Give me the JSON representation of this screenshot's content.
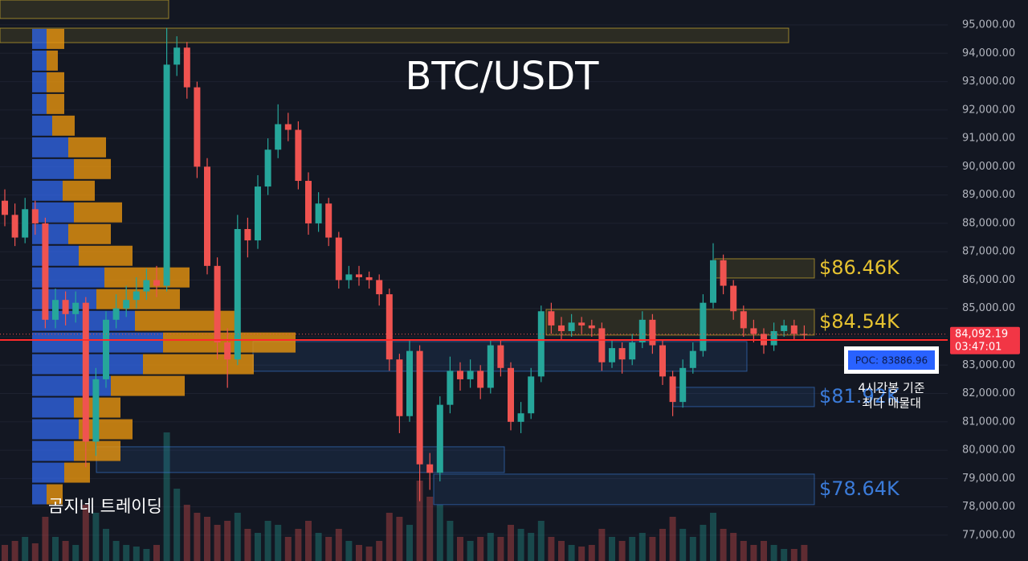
{
  "chart_data": {
    "type": "candlestick",
    "title": "BTC/USDT",
    "watermark": "곰지네 트레이딩",
    "ylim": [
      76090,
      95880
    ],
    "yticks": [
      {
        "value": 77000,
        "label": "77,000.00"
      },
      {
        "value": 78000,
        "label": "78,000.00"
      },
      {
        "value": 79000,
        "label": "79,000.00"
      },
      {
        "value": 80000,
        "label": "80,000.00"
      },
      {
        "value": 81000,
        "label": "81,000.00"
      },
      {
        "value": 82000,
        "label": "82,000.00"
      },
      {
        "value": 83000,
        "label": "83,000.00"
      },
      {
        "value": 84000,
        "label": "84,000.00"
      },
      {
        "value": 85000,
        "label": "85,000.00"
      },
      {
        "value": 86000,
        "label": "86,000.00"
      },
      {
        "value": 87000,
        "label": "87,000.00"
      },
      {
        "value": 88000,
        "label": "88,000.00"
      },
      {
        "value": 89000,
        "label": "89,000.00"
      },
      {
        "value": 90000,
        "label": "90,000.00"
      },
      {
        "value": 91000,
        "label": "91,000.00"
      },
      {
        "value": 92000,
        "label": "92,000.00"
      },
      {
        "value": 93000,
        "label": "93,000.00"
      },
      {
        "value": 94000,
        "label": "94,000.00"
      },
      {
        "value": 95000,
        "label": "95,000.00"
      }
    ],
    "up_color": "#26a69a",
    "down_color": "#ef5350",
    "open": [
      88800,
      88300,
      87500,
      88500,
      88000,
      84600,
      85300,
      84800,
      85200,
      80300,
      82500,
      84600,
      85000,
      85300,
      85600,
      86000,
      85800,
      93600,
      94200,
      92800,
      90000,
      86500,
      83800,
      83200,
      87800,
      87400,
      89300,
      90600,
      91500,
      91300,
      89500,
      88000,
      88700,
      87500,
      86000,
      86200,
      86100,
      86000,
      85500,
      83200,
      81200,
      83500,
      79500,
      79200,
      81600,
      82800,
      82500,
      82800,
      82200,
      83700,
      82900,
      81000,
      81300,
      82600,
      84900,
      84400,
      84200,
      84500,
      84400,
      84300,
      83100,
      83600,
      83200,
      83800,
      84600,
      83700,
      82600,
      81700,
      82900,
      83500,
      85200,
      86700,
      85800,
      84900,
      84300,
      84100,
      83700,
      84200,
      84400,
      84100
    ],
    "high": [
      89200,
      88700,
      88900,
      88800,
      88200,
      85700,
      85600,
      85600,
      85400,
      82900,
      84900,
      85500,
      85800,
      86100,
      86400,
      86500,
      94900,
      94600,
      94400,
      93000,
      90300,
      86800,
      84300,
      88300,
      88200,
      89700,
      91000,
      92200,
      91900,
      91600,
      89800,
      89100,
      88900,
      87700,
      86500,
      86500,
      86300,
      86200,
      85700,
      83400,
      83900,
      83700,
      79900,
      81900,
      83300,
      83100,
      83200,
      83000,
      83900,
      83900,
      83100,
      81700,
      82900,
      85100,
      85200,
      84700,
      84800,
      84700,
      84600,
      84500,
      83900,
      83800,
      84100,
      84900,
      84800,
      83900,
      82800,
      83200,
      83800,
      85500,
      87300,
      86900,
      86000,
      85100,
      84600,
      84300,
      84500,
      84600,
      84600,
      84400
    ],
    "low": [
      87900,
      87200,
      87300,
      87600,
      84300,
      84300,
      84400,
      84500,
      79400,
      79800,
      82200,
      84300,
      84700,
      85000,
      85300,
      85400,
      85600,
      93200,
      92400,
      89600,
      86200,
      83200,
      82200,
      83000,
      86800,
      87100,
      89000,
      90300,
      90900,
      89200,
      87600,
      87700,
      87200,
      85700,
      85700,
      85800,
      85700,
      85100,
      82800,
      80600,
      81000,
      78200,
      78600,
      78900,
      81300,
      82100,
      82200,
      81800,
      82000,
      82600,
      80700,
      80600,
      81100,
      82400,
      84100,
      83900,
      84000,
      84100,
      84000,
      82800,
      82900,
      82700,
      83000,
      83600,
      83400,
      82300,
      81200,
      81500,
      82700,
      83300,
      85000,
      85500,
      84600,
      84000,
      83800,
      83400,
      83500,
      84000,
      83900,
      83900
    ],
    "close": [
      88300,
      87500,
      88500,
      88000,
      84600,
      85300,
      84800,
      85200,
      80300,
      82500,
      84600,
      85000,
      85300,
      85600,
      86000,
      85800,
      93600,
      94200,
      92800,
      90000,
      86500,
      83800,
      83200,
      87800,
      87400,
      89300,
      90600,
      91500,
      91300,
      89500,
      88000,
      88700,
      87500,
      86000,
      86200,
      86100,
      86000,
      85500,
      83200,
      81200,
      83500,
      79500,
      79200,
      81600,
      82800,
      82500,
      82800,
      82200,
      83700,
      82900,
      81000,
      81300,
      82600,
      84900,
      84400,
      84200,
      84500,
      84400,
      84300,
      83100,
      83600,
      83200,
      83800,
      84600,
      83700,
      82600,
      81700,
      82900,
      83500,
      85200,
      86700,
      85800,
      84900,
      84300,
      84100,
      83700,
      84200,
      84400,
      84100,
      84092.19
    ],
    "volume": [
      20,
      25,
      30,
      22,
      55,
      30,
      25,
      20,
      70,
      60,
      40,
      25,
      20,
      18,
      15,
      20,
      160,
      90,
      70,
      60,
      55,
      45,
      50,
      60,
      40,
      35,
      50,
      45,
      30,
      40,
      50,
      35,
      30,
      40,
      25,
      20,
      18,
      25,
      60,
      55,
      45,
      100,
      80,
      70,
      50,
      30,
      25,
      30,
      35,
      30,
      45,
      40,
      35,
      50,
      30,
      25,
      20,
      18,
      20,
      40,
      30,
      25,
      30,
      35,
      30,
      40,
      55,
      40,
      30,
      45,
      60,
      40,
      35,
      25,
      20,
      25,
      20,
      15,
      15,
      20
    ],
    "volume_ylim": [
      0,
      200
    ],
    "volume_profile": {
      "bins": [
        94890,
        94125,
        93360,
        92595,
        91830,
        91065,
        90300,
        89535,
        88770,
        88005,
        87240,
        86475,
        85710,
        84945,
        84180,
        83415,
        82650,
        81885,
        81120,
        80355,
        79590,
        78825,
        78060
      ],
      "up": [
        18,
        18,
        18,
        18,
        25,
        45,
        52,
        38,
        52,
        45,
        58,
        90,
        80,
        128,
        163,
        138,
        98,
        52,
        58,
        52,
        40,
        18
      ],
      "down": [
        22,
        14,
        22,
        22,
        28,
        47,
        46,
        40,
        60,
        53,
        67,
        106,
        104,
        127,
        165,
        138,
        92,
        58,
        67,
        58,
        32,
        20
      ],
      "xlim": [
        0,
        330
      ],
      "up_color": "#2f63e0",
      "down_color": "#e8950f"
    },
    "zones": [
      {
        "low": 86072,
        "high": 86752,
        "color": "#e6c230",
        "label": "$86.46K"
      },
      {
        "low": 84059,
        "high": 84966,
        "color": "#e6c230",
        "label": "$84.54K"
      },
      {
        "low": 82784,
        "high": 83832,
        "color": "#3b7bd9"
      },
      {
        "low": 81536,
        "high": 82217,
        "color": "#3b7bd9",
        "label": "$81.92K"
      },
      {
        "low": 78078,
        "high": 79155,
        "color": "#3b7bd9",
        "label": "$78.64K"
      },
      {
        "low": 79212,
        "high": 80119,
        "color": "#3b7bd9"
      },
      {
        "low": 95227,
        "high": 95879,
        "color": "#e6c230"
      },
      {
        "low": 94376,
        "high": 94887,
        "color": "#e6c230"
      }
    ],
    "last_price": {
      "value": 84092.19,
      "label": "84,092.19"
    },
    "countdown": "03:47:01",
    "poc": {
      "value": 83886.96,
      "label": "POC: 83886.96"
    },
    "annotation": [
      "4시간봉 기준",
      "최다 매물대"
    ]
  }
}
